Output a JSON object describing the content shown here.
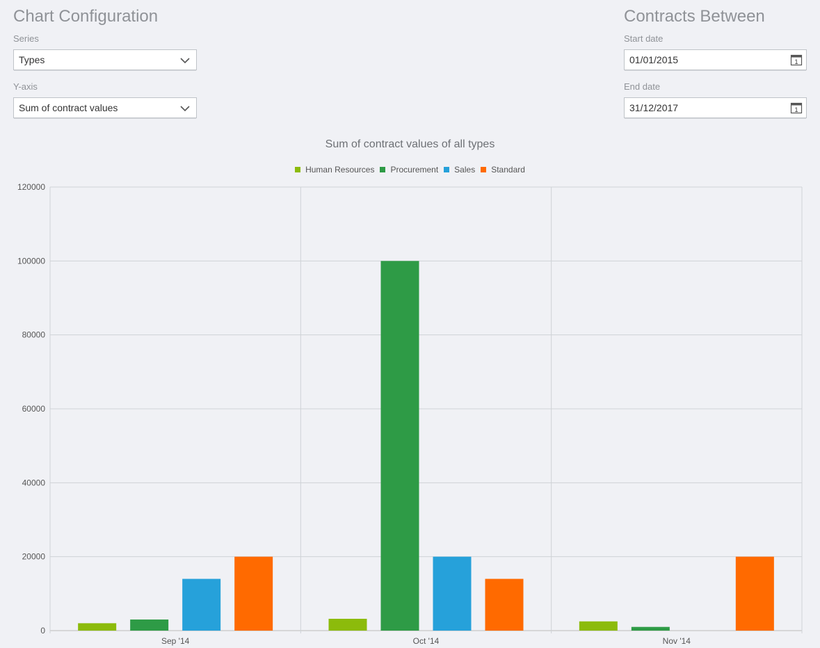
{
  "config": {
    "title": "Chart Configuration",
    "series_label": "Series",
    "series_value": "Types",
    "yaxis_label": "Y-axis",
    "yaxis_value": "Sum of contract values"
  },
  "contracts": {
    "title": "Contracts Between",
    "start_label": "Start date",
    "start_value": "01/01/2015",
    "end_label": "End date",
    "end_value": "31/12/2017"
  },
  "icons": {
    "dropdown": "chevron-down-icon",
    "date": "calendar-icon"
  },
  "chart_data": {
    "type": "bar",
    "title": "Sum of contract values of all types",
    "categories": [
      "Sep '14",
      "Oct '14",
      "Nov '14"
    ],
    "series": [
      {
        "name": "Human Resources",
        "color": "#8cbb0b",
        "values": [
          2000,
          3200,
          2500
        ]
      },
      {
        "name": "Procurement",
        "color": "#2e9b46",
        "values": [
          3000,
          100000,
          1000
        ]
      },
      {
        "name": "Sales",
        "color": "#26a1da",
        "values": [
          14000,
          20000,
          0
        ]
      },
      {
        "name": "Standard",
        "color": "#ff6a00",
        "values": [
          20000,
          14000,
          20000
        ]
      }
    ],
    "yticks": [
      "0",
      "20000",
      "40000",
      "60000",
      "80000",
      "100000",
      "120000"
    ],
    "ylim": [
      0,
      120000
    ],
    "grid": true,
    "legend_position": "top-center",
    "xlabel": "",
    "ylabel": ""
  }
}
